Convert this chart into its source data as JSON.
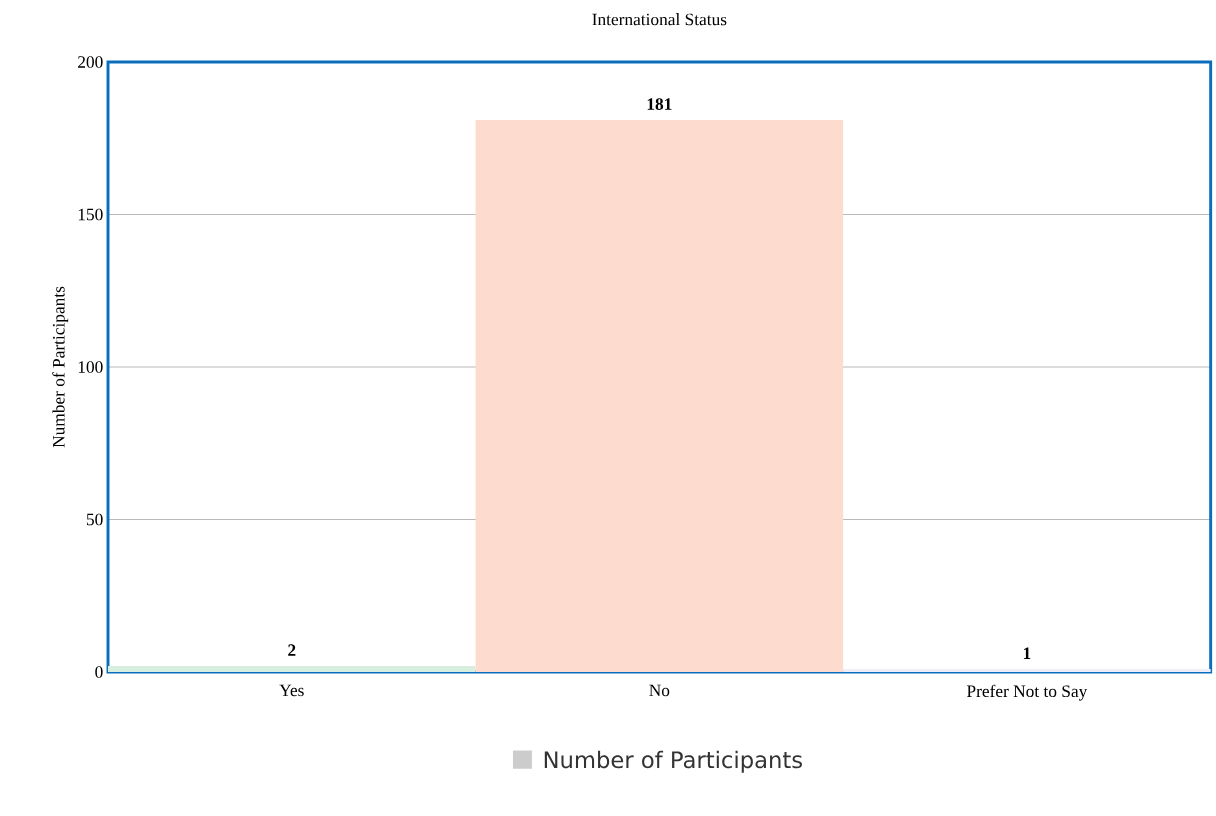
{
  "chart_data": {
    "type": "bar",
    "title": "International Status",
    "ylabel": "Number of Participants",
    "categories": [
      "Yes",
      "No",
      "Prefer Not to Say"
    ],
    "series": [
      {
        "name": "Number of Participants",
        "color": "#cccccc",
        "colors": [
          "#d8efe0",
          "#fddbce",
          "#eeeef8"
        ],
        "values": [
          2,
          181,
          1
        ]
      }
    ],
    "ylim": [
      0,
      200
    ],
    "yticks": [
      0,
      50,
      100,
      150,
      200
    ],
    "grid": "y",
    "legend": "bottom",
    "data_labels": true
  }
}
